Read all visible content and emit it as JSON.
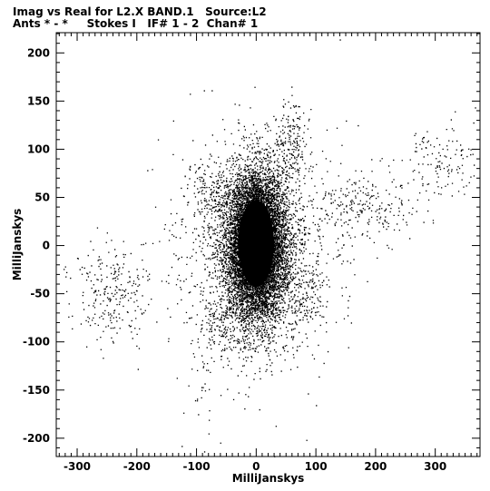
{
  "title_line1": "Imag vs Real for L2.X BAND.1   Source:L2",
  "title_line2": "Ants * - *     Stokes I   IF# 1 - 2  Chan# 1",
  "chart_data": {
    "type": "scatter",
    "xlabel": "MilliJanskys",
    "ylabel": "MilliJanskys",
    "xlim": [
      -335,
      375
    ],
    "ylim": [
      -219,
      221
    ],
    "xticks": [
      -300,
      -200,
      -100,
      0,
      100,
      200,
      300
    ],
    "yticks": [
      -200,
      -150,
      -100,
      -50,
      0,
      50,
      100,
      150,
      200
    ],
    "marker_color": "#000000",
    "grid": false,
    "clusters": [
      {
        "name_hint": "core",
        "center": [
          0,
          0
        ],
        "spread": [
          25,
          38
        ],
        "count": 9000
      },
      {
        "name_hint": "halo",
        "center": [
          5,
          0
        ],
        "spread": [
          60,
          55
        ],
        "count": 1800
      },
      {
        "name_hint": "left-arm",
        "center": [
          -240,
          -50
        ],
        "spread": [
          35,
          25
        ],
        "count": 260
      },
      {
        "name_hint": "right-arm-near",
        "center": [
          180,
          40
        ],
        "spread": [
          45,
          18
        ],
        "count": 220
      },
      {
        "name_hint": "right-arm-far",
        "center": [
          310,
          90
        ],
        "spread": [
          35,
          20
        ],
        "count": 130
      },
      {
        "name_hint": "upper-plume",
        "center": [
          60,
          110
        ],
        "spread": [
          12,
          20
        ],
        "count": 160
      },
      {
        "name_hint": "upper-left-lobe",
        "center": [
          -75,
          60
        ],
        "spread": [
          18,
          12
        ],
        "count": 120
      },
      {
        "name_hint": "lower-left-lobe",
        "center": [
          -60,
          -85
        ],
        "spread": [
          20,
          18
        ],
        "count": 140
      },
      {
        "name_hint": "lower-right-lobe",
        "center": [
          85,
          -55
        ],
        "spread": [
          15,
          20
        ],
        "count": 120
      },
      {
        "name_hint": "tail",
        "center": [
          -100,
          -150
        ],
        "spread": [
          15,
          25
        ],
        "count": 25
      }
    ],
    "outliers": [
      [
        140,
        214
      ],
      [
        -125,
        -208
      ],
      [
        -80,
        -195
      ],
      [
        -60,
        -155
      ],
      [
        170,
        125
      ],
      [
        330,
        120
      ],
      [
        -140,
        95
      ],
      [
        345,
        100
      ]
    ]
  }
}
